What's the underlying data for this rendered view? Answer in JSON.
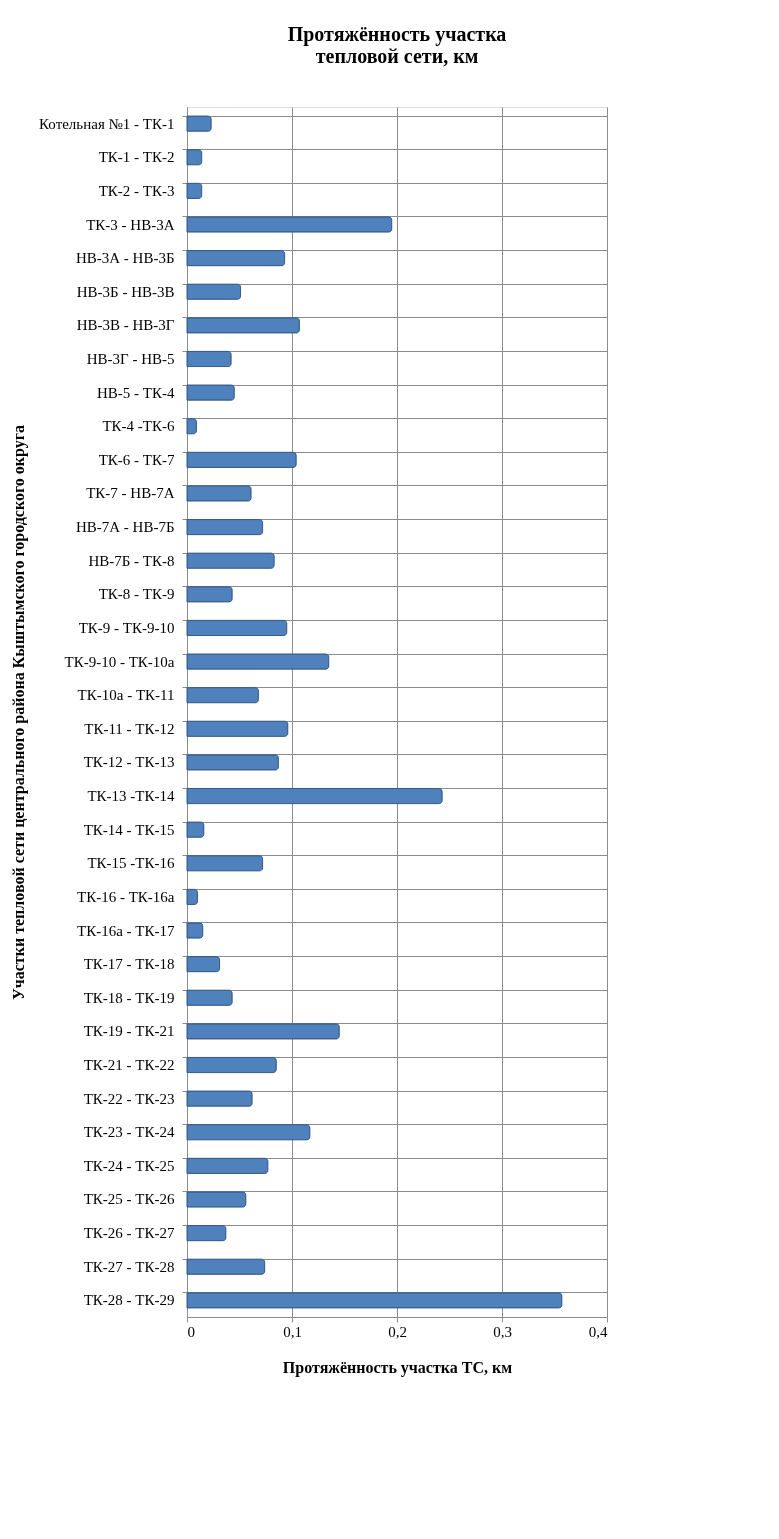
{
  "chart_data": {
    "type": "bar",
    "orientation": "horizontal",
    "title": "Протяжённость участка\nтепловой сети, км",
    "xlabel": "Протяжённость участка ТС, км",
    "ylabel": "Участки тепловой сети центрального района  Кыштымского городского округа",
    "categories": [
      "Котельная №1 - ТК-1",
      "ТК-1 - ТК-2",
      "ТК-2 - ТК-3",
      "ТК-3 - НВ-3А",
      "НВ-3А - НВ-3Б",
      "НВ-3Б - НВ-3В",
      "НВ-3В - НВ-3Г",
      "НВ-3Г - НВ-5",
      "НВ-5 - ТК-4",
      "ТК-4 -ТК-6",
      "ТК-6 - ТК-7",
      "ТК-7 - НВ-7А",
      "НВ-7А - НВ-7Б",
      "НВ-7Б - ТК-8",
      "ТК-8 - ТК-9",
      "ТК-9 - ТК-9-10",
      "ТК-9-10 - ТК-10а",
      "ТК-10а - ТК-11",
      "ТК-11 - ТК-12",
      "ТК-12 - ТК-13",
      "ТК-13 -ТК-14",
      "ТК-14 - ТК-15",
      "ТК-15 -ТК-16",
      "ТК-16 - ТК-16а",
      "ТК-16а - ТК-17",
      "ТК-17 - ТК-18",
      "ТК-18 - ТК-19",
      "ТК-19 - ТК-21",
      "ТК-21 - ТК-22",
      "ТК-22 - ТК-23",
      "ТК-23 - ТК-24",
      "ТК-24 - ТК-25",
      "ТК-25 - ТК-26",
      "ТК-26 - ТК-27",
      "ТК-27 - ТК-28",
      "ТК-28 - ТК-29"
    ],
    "values": [
      0.023,
      0.014,
      0.014,
      0.195,
      0.093,
      0.051,
      0.107,
      0.042,
      0.045,
      0.009,
      0.104,
      0.061,
      0.072,
      0.083,
      0.043,
      0.095,
      0.135,
      0.068,
      0.096,
      0.087,
      0.243,
      0.016,
      0.072,
      0.01,
      0.015,
      0.031,
      0.043,
      0.145,
      0.085,
      0.062,
      0.117,
      0.077,
      0.056,
      0.037,
      0.074,
      0.357
    ],
    "color": "#4f81bd",
    "xlim": [
      0,
      0.4
    ],
    "xticks": [
      0,
      {
        "value": 0.1,
        "label": "0,1"
      },
      {
        "value": 0.2,
        "label": "0,2"
      },
      {
        "value": 0.3,
        "label": "0,3"
      },
      {
        "value": 0.4,
        "label": "0,4"
      }
    ],
    "grid": true
  }
}
